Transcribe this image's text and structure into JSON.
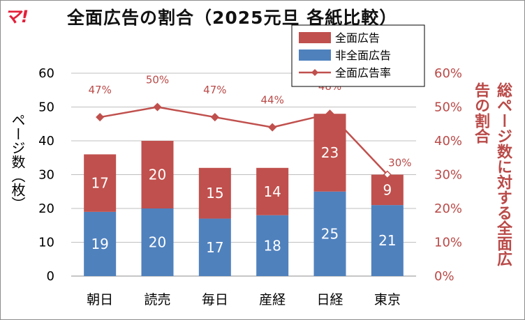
{
  "header": {
    "logo_text": "マ!",
    "title": "全面広告の割合（2025元旦 各紙比較）"
  },
  "colors": {
    "full_page_ad": "#c0504d",
    "non_ad": "#4f81bd",
    "rate_line": "#c0504d",
    "grid": "#bfbfbf"
  },
  "chart_data": {
    "type": "bar",
    "stacked": true,
    "categories": [
      "朝日",
      "読売",
      "毎日",
      "産経",
      "日経",
      "東京"
    ],
    "series": [
      {
        "name": "非全面広告",
        "values": [
          19,
          20,
          17,
          18,
          25,
          21
        ],
        "axis": "left"
      },
      {
        "name": "全面広告",
        "values": [
          17,
          20,
          15,
          14,
          23,
          9
        ],
        "axis": "left"
      }
    ],
    "line_series": {
      "name": "全面広告率",
      "values": [
        47,
        50,
        47,
        44,
        48,
        30
      ],
      "labels": [
        "47%",
        "50%",
        "47%",
        "44%",
        "48%",
        "30%"
      ],
      "axis": "right"
    },
    "ylabel": "ページ数（枚）",
    "ylabel_right": "総ページ数に対する全面広告の割合",
    "ylim": [
      0,
      60
    ],
    "yticks": [
      "0",
      "10",
      "20",
      "30",
      "40",
      "50",
      "60"
    ],
    "ylim_right": [
      0,
      60
    ],
    "yticks_right": [
      "0%",
      "10%",
      "20%",
      "30%",
      "40%",
      "50%",
      "60%"
    ],
    "legend_order": [
      "全面広告",
      "非全面広告",
      "全面広告率"
    ],
    "legend_position": "top-right",
    "grid": true
  }
}
